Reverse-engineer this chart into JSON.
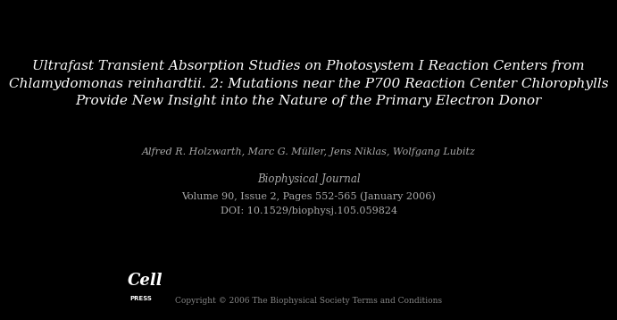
{
  "background_color": "#000000",
  "title_line1": "Ultrafast Transient Absorption Studies on Photosystem I Reaction Centers from",
  "title_line2": "Chlamydomonas reinhardtii. 2: Mutations near the P700 Reaction Center Chlorophylls",
  "title_line3": "Provide New Insight into the Nature of the Primary Electron Donor",
  "title_color": "#ffffff",
  "title_fontsize": 11.0,
  "title_style": "italic",
  "authors": "Alfred R. Holzwarth, Marc G. Müller, Jens Niklas, Wolfgang Lubitz",
  "authors_color": "#aaaaaa",
  "authors_fontsize": 8.0,
  "authors_style": "italic",
  "journal": "Biophysical Journal",
  "journal_color": "#aaaaaa",
  "journal_fontsize": 8.5,
  "journal_style": "italic",
  "volume_line": "Volume 90, Issue 2, Pages 552-565 (January 2006)",
  "doi_line": "DOI: 10.1529/biophysj.105.059824",
  "volume_color": "#aaaaaa",
  "volume_fontsize": 8.0,
  "cell_text": "Cell",
  "press_text": "PRESS",
  "cell_press_color": "#ffffff",
  "cell_fontsize": 13,
  "press_fontsize": 5,
  "copyright_text": "Copyright © 2006 The Biophysical Society Terms and Conditions",
  "copyright_color": "#888888",
  "copyright_fontsize": 6.5
}
